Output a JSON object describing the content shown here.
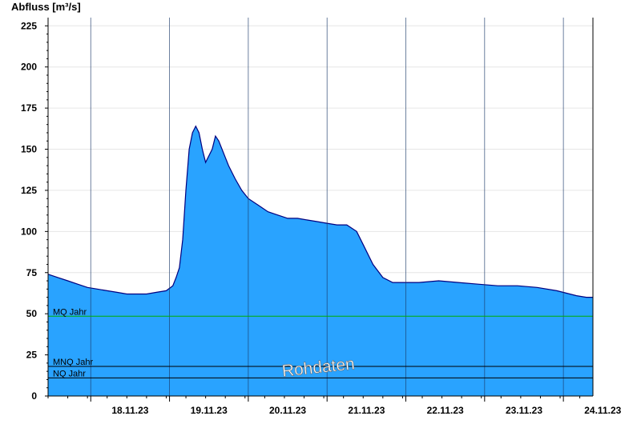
{
  "chart_data": {
    "type": "area",
    "ylabel": "Abfluss [m³/s]",
    "ylim": [
      0,
      230
    ],
    "yticks": [
      0,
      25,
      50,
      75,
      100,
      125,
      150,
      175,
      200,
      225
    ],
    "xlim": [
      "2023-11-17T11:00",
      "2023-11-24T09:00"
    ],
    "day_boundaries": [
      "18.11.23",
      "19.11.23",
      "20.11.23",
      "21.11.23",
      "22.11.23",
      "23.11.23",
      "24.11.23"
    ],
    "xtick_labels": [
      "18.11.23",
      "19.11.23",
      "20.11.23",
      "21.11.23",
      "22.11.23",
      "23.11.23",
      "24.11.23"
    ],
    "grid": true,
    "fill_color": "#29a3ff",
    "line_color": "#00007f",
    "series": [
      {
        "x": [
          "17.11.23 11:00",
          "17.11.23 14:00",
          "17.11.23 17:00",
          "17.11.23 20:00",
          "17.11.23 23:00",
          "18.11.23 02:00",
          "18.11.23 05:00",
          "18.11.23 08:00",
          "18.11.23 11:00",
          "18.11.23 14:00",
          "18.11.23 17:00",
          "18.11.23 20:00",
          "18.11.23 23:00",
          "19.11.23 01:00",
          "19.11.23 02:00",
          "19.11.23 03:00",
          "19.11.23 04:00",
          "19.11.23 05:00",
          "19.11.23 06:00",
          "19.11.23 07:00",
          "19.11.23 08:00",
          "19.11.23 09:00",
          "19.11.23 10:00",
          "19.11.23 11:00",
          "19.11.23 13:00",
          "19.11.23 14:00",
          "19.11.23 15:00",
          "19.11.23 16:00",
          "19.11.23 17:00",
          "19.11.23 18:00",
          "19.11.23 20:00",
          "19.11.23 22:00",
          "20.11.23 00:00",
          "20.11.23 03:00",
          "20.11.23 06:00",
          "20.11.23 09:00",
          "20.11.23 12:00",
          "20.11.23 15:00",
          "20.11.23 18:00",
          "20.11.23 21:00",
          "21.11.23 00:00",
          "21.11.23 03:00",
          "21.11.23 06:00",
          "21.11.23 09:00",
          "21.11.23 11:00",
          "21.11.23 14:00",
          "21.11.23 17:00",
          "21.11.23 20:00",
          "21.11.23 23:00",
          "22.11.23 04:00",
          "22.11.23 10:00",
          "22.11.23 16:00",
          "22.11.23 22:00",
          "23.11.23 04:00",
          "23.11.23 10:00",
          "23.11.23 16:00",
          "23.11.23 22:00",
          "24.11.23 04:00",
          "24.11.23 07:00",
          "24.11.23 09:00"
        ],
        "y": [
          74,
          72,
          70,
          68,
          66,
          65,
          64,
          63,
          62,
          62,
          62,
          63,
          64,
          67,
          72,
          78,
          95,
          125,
          150,
          160,
          164,
          160,
          150,
          142,
          150,
          158,
          155,
          150,
          145,
          140,
          132,
          125,
          120,
          116,
          112,
          110,
          108,
          108,
          107,
          106,
          105,
          104,
          104,
          100,
          92,
          80,
          72,
          69,
          69,
          69,
          70,
          69,
          68,
          67,
          67,
          66,
          64,
          61,
          60,
          60
        ]
      }
    ],
    "annotations": {
      "watermark": "Rohdaten",
      "reference_lines": [
        {
          "label": "MQ Jahr",
          "value": 48.5,
          "color": "#00b000"
        },
        {
          "label": "MNQ Jahr",
          "value": 18,
          "color": "#000000"
        },
        {
          "label": "NQ Jahr",
          "value": 11,
          "color": "#000000"
        }
      ]
    }
  }
}
